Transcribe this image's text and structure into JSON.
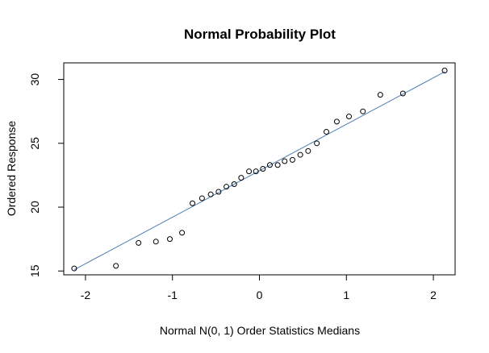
{
  "chart_data": {
    "type": "scatter",
    "title": "Normal Probability Plot",
    "xlabel": "Normal N(0, 1) Order Statistics Medians",
    "ylabel": "Ordered Response",
    "xlim": [
      -2.25,
      2.25
    ],
    "ylim": [
      14.7,
      31.3
    ],
    "x_ticks": [
      -2,
      -1,
      0,
      1,
      2
    ],
    "y_ticks": [
      15,
      20,
      25,
      30
    ],
    "grid": false,
    "points": [
      {
        "x": -2.13,
        "y": 15.2
      },
      {
        "x": -1.65,
        "y": 15.4
      },
      {
        "x": -1.39,
        "y": 17.2
      },
      {
        "x": -1.19,
        "y": 17.3
      },
      {
        "x": -1.03,
        "y": 17.5
      },
      {
        "x": -0.89,
        "y": 18.0
      },
      {
        "x": -0.77,
        "y": 20.3
      },
      {
        "x": -0.66,
        "y": 20.7
      },
      {
        "x": -0.56,
        "y": 21.0
      },
      {
        "x": -0.47,
        "y": 21.2
      },
      {
        "x": -0.38,
        "y": 21.6
      },
      {
        "x": -0.29,
        "y": 21.8
      },
      {
        "x": -0.21,
        "y": 22.3
      },
      {
        "x": -0.12,
        "y": 22.8
      },
      {
        "x": -0.04,
        "y": 22.8
      },
      {
        "x": 0.04,
        "y": 23.0
      },
      {
        "x": 0.12,
        "y": 23.3
      },
      {
        "x": 0.21,
        "y": 23.3
      },
      {
        "x": 0.29,
        "y": 23.6
      },
      {
        "x": 0.38,
        "y": 23.7
      },
      {
        "x": 0.47,
        "y": 24.1
      },
      {
        "x": 0.56,
        "y": 24.4
      },
      {
        "x": 0.66,
        "y": 25.0
      },
      {
        "x": 0.77,
        "y": 25.9
      },
      {
        "x": 0.89,
        "y": 26.7
      },
      {
        "x": 1.03,
        "y": 27.1
      },
      {
        "x": 1.19,
        "y": 27.5
      },
      {
        "x": 1.39,
        "y": 28.8
      },
      {
        "x": 1.65,
        "y": 28.9
      },
      {
        "x": 2.13,
        "y": 30.7
      }
    ],
    "fit_line": {
      "x": [
        -2.13,
        2.13
      ],
      "y": [
        15.1,
        30.6
      ]
    },
    "colors": {
      "points": "#000000",
      "fit_line": "#4f7fb4",
      "frame": "#000000"
    }
  }
}
